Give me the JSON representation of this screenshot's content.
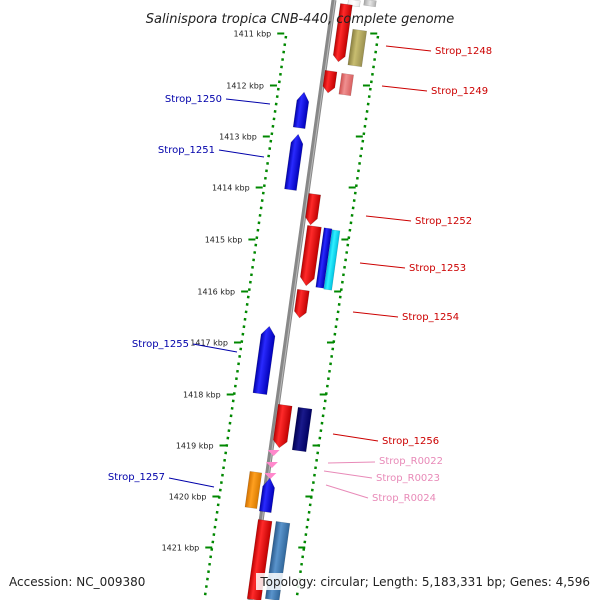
{
  "title": "Salinispora tropica CNB-440, complete genome",
  "footer": {
    "accession": "Accession: NC_009380",
    "topology": "Topology: circular; Length: 5,183,331 bp; Genes: 4,596"
  },
  "ticks": [
    "1411 kbp",
    "1412 kbp",
    "1413 kbp",
    "1414 kbp",
    "1415 kbp",
    "1416 kbp",
    "1417 kbp",
    "1418 kbp",
    "1419 kbp",
    "1420 kbp",
    "1421 kbp"
  ],
  "genes": [
    {
      "name": "Strop_1248",
      "strand": "+",
      "color": "#cc0000"
    },
    {
      "name": "Strop_1249",
      "strand": "+",
      "color": "#cc0000"
    },
    {
      "name": "Strop_1250",
      "strand": "-",
      "color": "#0000aa"
    },
    {
      "name": "Strop_1251",
      "strand": "-",
      "color": "#0000aa"
    },
    {
      "name": "Strop_1252",
      "strand": "+",
      "color": "#cc0000"
    },
    {
      "name": "Strop_1253",
      "strand": "+",
      "color": "#cc0000"
    },
    {
      "name": "Strop_1254",
      "strand": "+",
      "color": "#cc0000"
    },
    {
      "name": "Strop_1255",
      "strand": "-",
      "color": "#0000aa"
    },
    {
      "name": "Strop_1256",
      "strand": "+",
      "color": "#cc0000"
    },
    {
      "name": "Strop_R0022",
      "strand": "+",
      "color": "#e88ab8"
    },
    {
      "name": "Strop_R0023",
      "strand": "+",
      "color": "#e88ab8"
    },
    {
      "name": "Strop_R0024",
      "strand": "+",
      "color": "#e88ab8"
    },
    {
      "name": "Strop_1257",
      "strand": "-",
      "color": "#0000aa"
    }
  ],
  "colors": {
    "cds_forward": "#ff0000",
    "cds_reverse": "#0000ff",
    "rna": "#ff88cc",
    "backbone": "#888888",
    "ticks": "#008800"
  }
}
